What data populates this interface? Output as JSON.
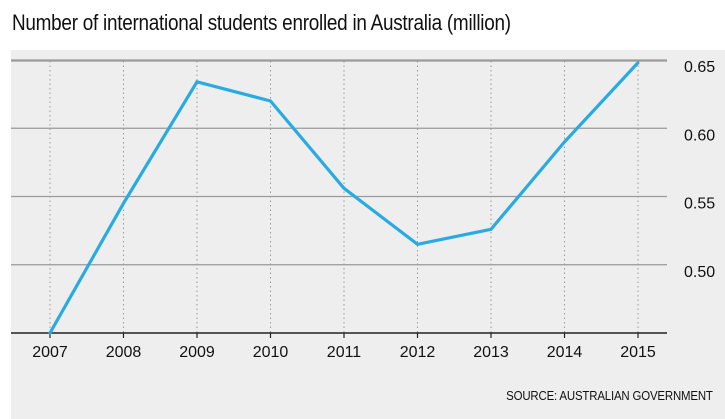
{
  "chart_data": {
    "type": "line",
    "title": "Number of international students enrolled in Australia (million)",
    "xlabel": "",
    "ylabel": "",
    "x": [
      "2007",
      "2008",
      "2009",
      "2010",
      "2011",
      "2012",
      "2013",
      "2014",
      "2015"
    ],
    "series": [
      {
        "values": [
          0.45,
          0.545,
          0.634,
          0.62,
          0.556,
          0.515,
          0.526,
          0.59,
          0.648
        ]
      }
    ],
    "yticks": [
      "0.50",
      "0.55",
      "0.60",
      "0.65"
    ],
    "ylim": [
      0.45,
      0.65
    ],
    "grid": {
      "horizontal": "solid",
      "vertical": "dotted"
    },
    "line_color": "#29abe2",
    "source": "SOURCE: AUSTRALIAN GOVERNMENT"
  }
}
